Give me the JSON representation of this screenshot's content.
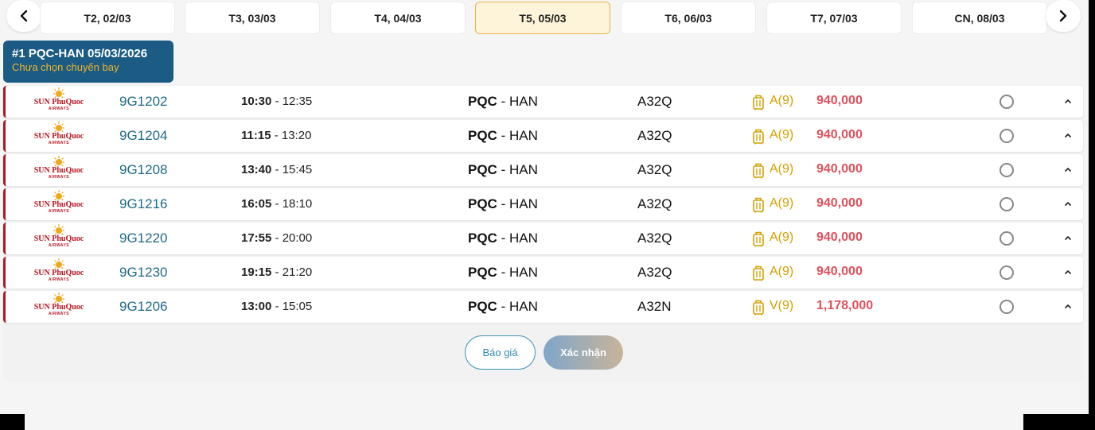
{
  "date_tabs": [
    {
      "label": "T2, 02/03",
      "active": false
    },
    {
      "label": "T3, 03/03",
      "active": false
    },
    {
      "label": "T4, 04/03",
      "active": false
    },
    {
      "label": "T5, 05/03",
      "active": true
    },
    {
      "label": "T6, 06/03",
      "active": false
    },
    {
      "label": "T7, 07/03",
      "active": false
    },
    {
      "label": "CN, 08/03",
      "active": false
    }
  ],
  "leg": {
    "title": "#1 PQC-HAN 05/03/2026",
    "status": "Chưa chọn chuyến bay"
  },
  "airline_logo": {
    "name": "SUN PhuQuoc",
    "sub": "AIRWAYS"
  },
  "flights": [
    {
      "code": "9G1202",
      "dep": "10:30",
      "arr": " - 12:35",
      "from": "PQC",
      "to": " - HAN",
      "aircraft": "A32Q",
      "class_seats": "A(9)",
      "price": "940,000"
    },
    {
      "code": "9G1204",
      "dep": "11:15",
      "arr": " - 13:20",
      "from": "PQC",
      "to": " - HAN",
      "aircraft": "A32Q",
      "class_seats": "A(9)",
      "price": "940,000"
    },
    {
      "code": "9G1208",
      "dep": "13:40",
      "arr": " - 15:45",
      "from": "PQC",
      "to": " - HAN",
      "aircraft": "A32Q",
      "class_seats": "A(9)",
      "price": "940,000"
    },
    {
      "code": "9G1216",
      "dep": "16:05",
      "arr": " - 18:10",
      "from": "PQC",
      "to": " - HAN",
      "aircraft": "A32Q",
      "class_seats": "A(9)",
      "price": "940,000"
    },
    {
      "code": "9G1220",
      "dep": "17:55",
      "arr": " - 20:00",
      "from": "PQC",
      "to": " - HAN",
      "aircraft": "A32Q",
      "class_seats": "A(9)",
      "price": "940,000"
    },
    {
      "code": "9G1230",
      "dep": "19:15",
      "arr": " - 21:20",
      "from": "PQC",
      "to": " - HAN",
      "aircraft": "A32Q",
      "class_seats": "A(9)",
      "price": "940,000"
    },
    {
      "code": "9G1206",
      "dep": "13:00",
      "arr": " - 15:05",
      "from": "PQC",
      "to": " - HAN",
      "aircraft": "A32N",
      "class_seats": "V(9)",
      "price": "1,178,000"
    }
  ],
  "actions": {
    "quote_label": "Báo giá",
    "confirm_label": "Xác nhận"
  },
  "colors": {
    "brand": "#1b5b84",
    "accent": "#f0b429",
    "price": "#e0505a",
    "airline": "#a51d24"
  },
  "icons": {
    "prev": "chevron-left-icon",
    "next": "chevron-right-icon",
    "baggage": "luggage-icon",
    "expand": "chevron-up-icon"
  }
}
